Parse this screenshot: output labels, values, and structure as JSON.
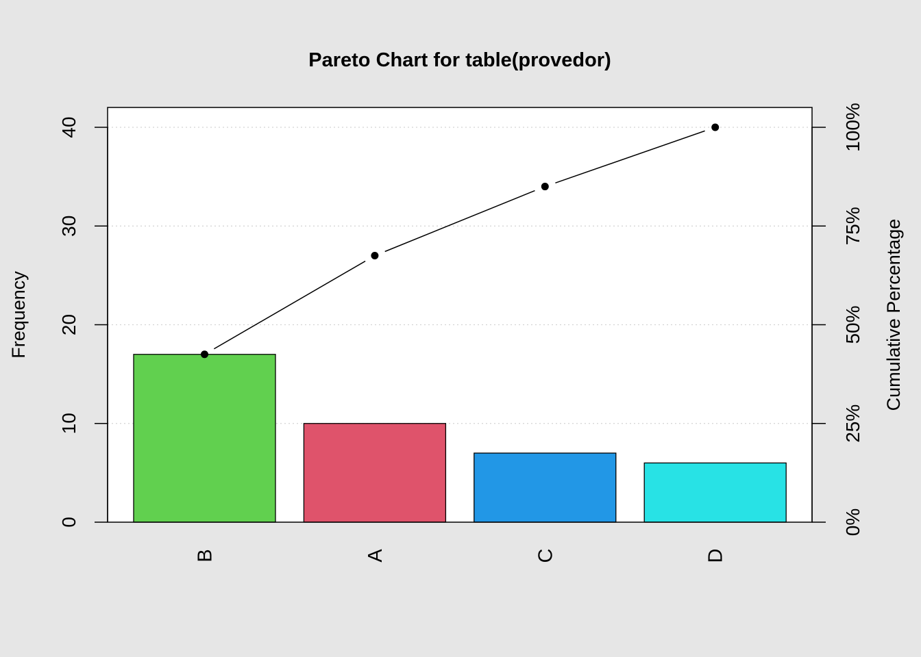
{
  "chart_data": {
    "type": "bar",
    "title": "Pareto Chart for table(provedor)",
    "xlabel": "",
    "ylabel": "Frequency",
    "y2label": "Cumulative Percentage",
    "categories": [
      "B",
      "A",
      "C",
      "D"
    ],
    "values": [
      17,
      10,
      7,
      6
    ],
    "bar_colors": [
      "#61d04f",
      "#df536b",
      "#2297e6",
      "#28e2e5"
    ],
    "cumulative_line": {
      "values": [
        17,
        27,
        34,
        40
      ],
      "percent": [
        42.5,
        67.5,
        85,
        100
      ]
    },
    "ylim": [
      0,
      40
    ],
    "yticks": [
      0,
      10,
      20,
      30,
      40
    ],
    "ytick_labels": [
      "0",
      "10",
      "20",
      "30",
      "40"
    ],
    "y2ticks": [
      0,
      25,
      50,
      75,
      100
    ],
    "y2tick_labels": [
      "0%",
      "25%",
      "50%",
      "75%",
      "100%"
    ],
    "grid": "horizontal dotted",
    "legend": "none",
    "colors": {
      "background": "#e6e6e6",
      "plot_background": "#ffffff",
      "grid": "#d3d3d3",
      "line": "#000000"
    }
  }
}
